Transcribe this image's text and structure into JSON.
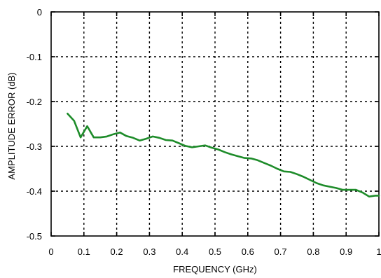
{
  "chart_data": {
    "type": "line",
    "title": "",
    "xlabel": "FREQUENCY (GHz)",
    "ylabel": "AMPLITUDE ERROR (dB)",
    "xlim": [
      0,
      1
    ],
    "ylim": [
      -0.5,
      0
    ],
    "xticks": [
      0,
      0.1,
      0.2,
      0.3,
      0.4,
      0.5,
      0.6,
      0.7,
      0.8,
      0.9,
      1
    ],
    "xtick_labels": [
      "0",
      "0.1",
      "0.2",
      "0.3",
      "0.4",
      "0.5",
      "0.6",
      "0.7",
      "0.8",
      "0.9",
      "1"
    ],
    "yticks": [
      0,
      -0.1,
      -0.2,
      -0.3,
      -0.4,
      -0.5
    ],
    "ytick_labels": [
      "0",
      "-0.1",
      "-0.2",
      "-0.3",
      "-0.4",
      "-0.5"
    ],
    "grid": true,
    "series_color": "#1e8c2a",
    "series": [
      {
        "x": [
          0.05,
          0.07,
          0.09,
          0.11,
          0.13,
          0.15,
          0.17,
          0.19,
          0.21,
          0.23,
          0.25,
          0.27,
          0.29,
          0.31,
          0.33,
          0.35,
          0.37,
          0.39,
          0.41,
          0.43,
          0.45,
          0.47,
          0.49,
          0.51,
          0.53,
          0.55,
          0.57,
          0.59,
          0.61,
          0.63,
          0.65,
          0.67,
          0.69,
          0.71,
          0.73,
          0.75,
          0.77,
          0.79,
          0.81,
          0.83,
          0.85,
          0.87,
          0.89,
          0.91,
          0.93,
          0.95,
          0.97,
          0.99,
          1.0
        ],
        "y": [
          -0.227,
          -0.243,
          -0.28,
          -0.255,
          -0.28,
          -0.28,
          -0.278,
          -0.273,
          -0.269,
          -0.277,
          -0.281,
          -0.287,
          -0.283,
          -0.278,
          -0.281,
          -0.286,
          -0.287,
          -0.293,
          -0.299,
          -0.302,
          -0.3,
          -0.298,
          -0.303,
          -0.307,
          -0.313,
          -0.318,
          -0.322,
          -0.326,
          -0.327,
          -0.331,
          -0.337,
          -0.343,
          -0.35,
          -0.356,
          -0.357,
          -0.362,
          -0.368,
          -0.375,
          -0.382,
          -0.387,
          -0.39,
          -0.393,
          -0.397,
          -0.397,
          -0.397,
          -0.403,
          -0.412,
          -0.41,
          -0.41
        ]
      }
    ]
  }
}
